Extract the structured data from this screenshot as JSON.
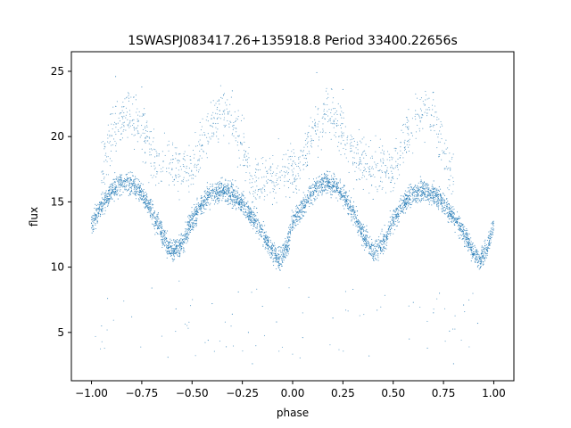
{
  "chart_data": {
    "type": "scatter",
    "title": "1SWASPJ083417.26+135918.8 Period 33400.22656s",
    "xlabel": "phase",
    "ylabel": "flux",
    "xlim": [
      -1.1,
      1.1
    ],
    "ylim": [
      1.3,
      26.5
    ],
    "xticks": [
      -1.0,
      -0.75,
      -0.5,
      -0.25,
      0.0,
      0.25,
      0.5,
      0.75,
      1.0
    ],
    "xtick_labels": [
      "−1.00",
      "−0.75",
      "−0.50",
      "−0.25",
      "0.00",
      "0.25",
      "0.50",
      "0.75",
      "1.00"
    ],
    "yticks": [
      5,
      10,
      15,
      20,
      25
    ],
    "ytick_labels": [
      "5",
      "10",
      "15",
      "20",
      "25"
    ],
    "grid": false,
    "point_color": "#1f77b4",
    "main_band_points": [
      {
        "x": -1.0,
        "y": 13.4
      },
      {
        "x": -0.95,
        "y": 14.6
      },
      {
        "x": -0.9,
        "y": 15.8
      },
      {
        "x": -0.85,
        "y": 16.5
      },
      {
        "x": -0.8,
        "y": 16.4
      },
      {
        "x": -0.75,
        "y": 15.6
      },
      {
        "x": -0.7,
        "y": 14.2
      },
      {
        "x": -0.65,
        "y": 12.5
      },
      {
        "x": -0.6,
        "y": 11.1
      },
      {
        "x": -0.55,
        "y": 11.8
      },
      {
        "x": -0.5,
        "y": 13.6
      },
      {
        "x": -0.45,
        "y": 14.9
      },
      {
        "x": -0.4,
        "y": 15.6
      },
      {
        "x": -0.35,
        "y": 15.9
      },
      {
        "x": -0.3,
        "y": 15.6
      },
      {
        "x": -0.25,
        "y": 14.9
      },
      {
        "x": -0.2,
        "y": 13.9
      },
      {
        "x": -0.15,
        "y": 12.6
      },
      {
        "x": -0.1,
        "y": 11.2
      },
      {
        "x": -0.07,
        "y": 10.5
      },
      {
        "x": -0.03,
        "y": 11.4
      },
      {
        "x": 0.0,
        "y": 13.4
      },
      {
        "x": 0.05,
        "y": 14.6
      },
      {
        "x": 0.1,
        "y": 15.8
      },
      {
        "x": 0.15,
        "y": 16.5
      },
      {
        "x": 0.2,
        "y": 16.4
      },
      {
        "x": 0.25,
        "y": 15.6
      },
      {
        "x": 0.3,
        "y": 14.2
      },
      {
        "x": 0.35,
        "y": 12.5
      },
      {
        "x": 0.4,
        "y": 11.1
      },
      {
        "x": 0.45,
        "y": 11.8
      },
      {
        "x": 0.5,
        "y": 13.6
      },
      {
        "x": 0.55,
        "y": 14.9
      },
      {
        "x": 0.6,
        "y": 15.6
      },
      {
        "x": 0.65,
        "y": 15.9
      },
      {
        "x": 0.7,
        "y": 15.6
      },
      {
        "x": 0.75,
        "y": 14.9
      },
      {
        "x": 0.8,
        "y": 13.9
      },
      {
        "x": 0.85,
        "y": 12.6
      },
      {
        "x": 0.9,
        "y": 11.2
      },
      {
        "x": 0.93,
        "y": 10.5
      },
      {
        "x": 0.97,
        "y": 11.4
      },
      {
        "x": 1.0,
        "y": 13.4
      }
    ],
    "upper_branch_points": [
      {
        "x": -0.95,
        "y": 17.8
      },
      {
        "x": -0.9,
        "y": 20.2
      },
      {
        "x": -0.85,
        "y": 21.3
      },
      {
        "x": -0.8,
        "y": 21.7
      },
      {
        "x": -0.75,
        "y": 20.6
      },
      {
        "x": -0.7,
        "y": 18.4
      },
      {
        "x": -0.5,
        "y": 17.3
      },
      {
        "x": -0.45,
        "y": 19.6
      },
      {
        "x": -0.4,
        "y": 21.0
      },
      {
        "x": -0.35,
        "y": 22.0
      },
      {
        "x": -0.3,
        "y": 21.4
      },
      {
        "x": -0.25,
        "y": 19.0
      },
      {
        "x": -0.2,
        "y": 16.5
      },
      {
        "x": 0.05,
        "y": 17.8
      },
      {
        "x": 0.1,
        "y": 20.2
      },
      {
        "x": 0.15,
        "y": 21.3
      },
      {
        "x": 0.2,
        "y": 21.7
      },
      {
        "x": 0.25,
        "y": 20.6
      },
      {
        "x": 0.3,
        "y": 18.4
      },
      {
        "x": 0.5,
        "y": 17.3
      },
      {
        "x": 0.55,
        "y": 19.6
      },
      {
        "x": 0.6,
        "y": 21.0
      },
      {
        "x": 0.65,
        "y": 22.0
      },
      {
        "x": 0.7,
        "y": 21.4
      },
      {
        "x": 0.75,
        "y": 19.0
      },
      {
        "x": 0.8,
        "y": 16.5
      }
    ],
    "outlier_points": [
      {
        "x": -0.95,
        "y": 5.5
      },
      {
        "x": -0.92,
        "y": 7.6
      },
      {
        "x": -0.8,
        "y": 6.2
      },
      {
        "x": -0.7,
        "y": 8.4
      },
      {
        "x": -0.62,
        "y": 3.1
      },
      {
        "x": -0.58,
        "y": 6.8
      },
      {
        "x": -0.42,
        "y": 4.4
      },
      {
        "x": -0.4,
        "y": 7.2
      },
      {
        "x": -0.33,
        "y": 3.9
      },
      {
        "x": -0.3,
        "y": 6.4
      },
      {
        "x": -0.27,
        "y": 8.1
      },
      {
        "x": -0.22,
        "y": 5.0
      },
      {
        "x": -0.2,
        "y": 2.6
      },
      {
        "x": -0.15,
        "y": 7.0
      },
      {
        "x": -0.08,
        "y": 5.8
      },
      {
        "x": 0.05,
        "y": 4.6
      },
      {
        "x": 0.08,
        "y": 7.7
      },
      {
        "x": 0.2,
        "y": 6.1
      },
      {
        "x": 0.3,
        "y": 8.3
      },
      {
        "x": 0.38,
        "y": 3.2
      },
      {
        "x": 0.42,
        "y": 6.7
      },
      {
        "x": 0.58,
        "y": 4.5
      },
      {
        "x": 0.6,
        "y": 7.3
      },
      {
        "x": 0.67,
        "y": 3.8
      },
      {
        "x": 0.7,
        "y": 6.5
      },
      {
        "x": 0.73,
        "y": 8.0
      },
      {
        "x": 0.78,
        "y": 5.1
      },
      {
        "x": 0.8,
        "y": 2.6
      },
      {
        "x": 0.85,
        "y": 7.1
      },
      {
        "x": 0.92,
        "y": 5.7
      },
      {
        "x": -0.75,
        "y": 23.8
      },
      {
        "x": -0.88,
        "y": 24.6
      },
      {
        "x": -0.3,
        "y": 23.5
      },
      {
        "x": 0.12,
        "y": 24.9
      },
      {
        "x": 0.25,
        "y": 23.6
      },
      {
        "x": 0.7,
        "y": 23.4
      },
      {
        "x": -0.1,
        "y": 14.8
      },
      {
        "x": 0.4,
        "y": 15.2
      },
      {
        "x": -0.55,
        "y": 16.6
      }
    ]
  }
}
